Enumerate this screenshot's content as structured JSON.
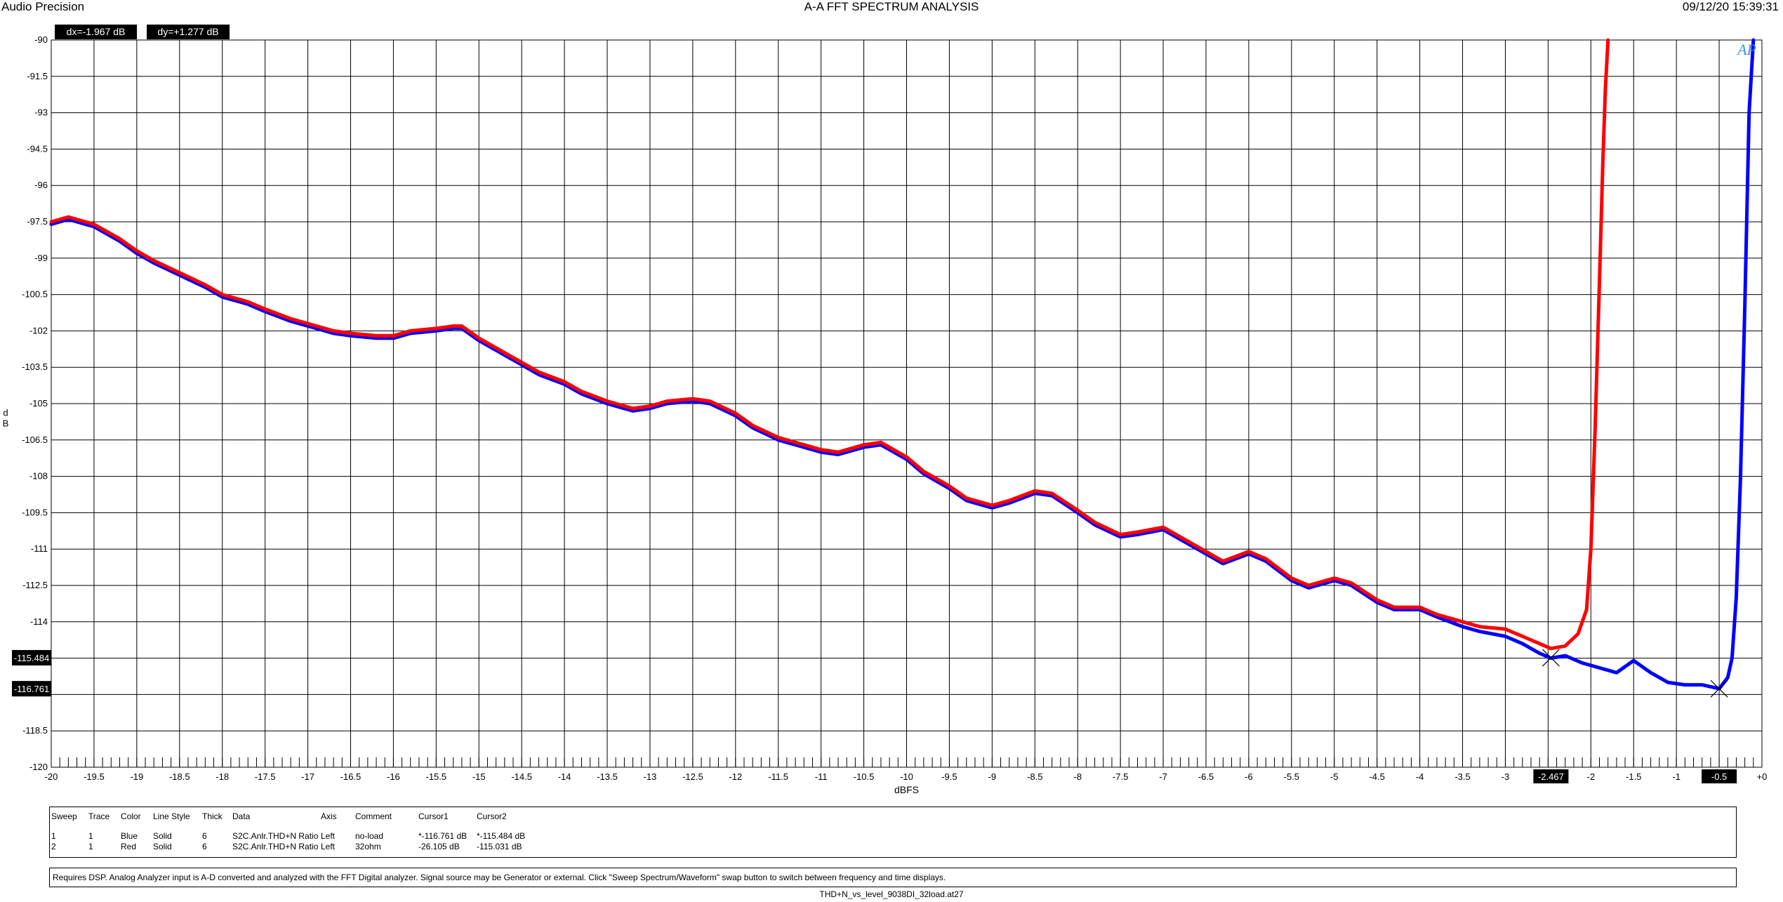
{
  "header": {
    "brand": "Audio Precision",
    "title": "A-A FFT SPECTRUM ANALYSIS",
    "datetime": "09/12/20 15:39:31"
  },
  "cursor_readouts": {
    "dx": "dx=-1.967  dB",
    "dy": "dy=+1.277  dB"
  },
  "logo": "AP",
  "colors": {
    "blue": "#0000ff",
    "red": "#ff0000",
    "grid": "#000000",
    "background": "#ffffff"
  },
  "chart_data": {
    "type": "line",
    "title": "A-A FFT SPECTRUM ANALYSIS",
    "xlabel": "dBFS",
    "ylabel": "dB",
    "xlim": [
      -20,
      0
    ],
    "ylim": [
      -120,
      -90
    ],
    "x_ticks": [
      -20,
      -19.5,
      -19,
      -18.5,
      -18,
      -17.5,
      -17,
      -16.5,
      -16,
      -15.5,
      -15,
      -14.5,
      -14,
      -13.5,
      -13,
      -12.5,
      -12,
      -11.5,
      -11,
      -10.5,
      -10,
      -9.5,
      -9,
      -8.5,
      -8,
      -7.5,
      -7,
      -6.5,
      -6,
      -5.5,
      -5,
      -4.5,
      -4,
      -3.5,
      -3,
      -2.5,
      -2,
      -1.5,
      -1,
      -0.5,
      0
    ],
    "x_tick_labels": [
      "-20",
      "-19.5",
      "-19",
      "-18.5",
      "-18",
      "-17.5",
      "-17",
      "-16.5",
      "-16",
      "-15.5",
      "-15",
      "-14.5",
      "-14",
      "-13.5",
      "-13",
      "-12.5",
      "-12",
      "-11.5",
      "-11",
      "-10.5",
      "-10",
      "-9.5",
      "-9",
      "-8.5",
      "-8",
      "-7.5",
      "-7",
      "-6.5",
      "-6",
      "-5.5",
      "-5",
      "-4.5",
      "-4",
      "-3.5",
      "-3",
      "-2.5",
      "-2",
      "-1.5",
      "-1",
      "-0.5",
      "+0"
    ],
    "y_ticks": [
      -90,
      -91.5,
      -93,
      -94.5,
      -96,
      -97.5,
      -99,
      -100.5,
      -102,
      -103.5,
      -105,
      -106.5,
      -108,
      -109.5,
      -111,
      -112.5,
      -114,
      -115.5,
      -117,
      -118.5,
      -120
    ],
    "y_tick_labels": [
      "-90",
      "-91.5",
      "-93",
      "-94.5",
      "-96",
      "-97.5",
      "-99",
      "-100.5",
      "-102",
      "-103.5",
      "-105",
      "-106.5",
      "-108",
      "-109.5",
      "-111",
      "-112.5",
      "-114",
      "",
      "",
      "-118.5",
      "-120"
    ],
    "grid": true,
    "cursor_markers": {
      "x": [
        {
          "value": -2.467,
          "label": "-2.467"
        },
        {
          "value": -0.5,
          "label": "-0.5"
        }
      ],
      "y": [
        {
          "value": -115.484,
          "label": "-115.484"
        },
        {
          "value": -116.761,
          "label": "-116.761"
        }
      ],
      "points": [
        {
          "x": -2.467,
          "y": -115.484
        },
        {
          "x": -0.5,
          "y": -116.761
        }
      ]
    },
    "series": [
      {
        "color": "#0000ff",
        "x": [
          -20,
          -19.8,
          -19.5,
          -19.2,
          -19,
          -18.8,
          -18.5,
          -18.2,
          -18,
          -17.7,
          -17.5,
          -17.2,
          -17,
          -16.7,
          -16.5,
          -16.2,
          -16,
          -15.8,
          -15.5,
          -15.3,
          -15.2,
          -15,
          -14.8,
          -14.5,
          -14.3,
          -14,
          -13.8,
          -13.5,
          -13.2,
          -13,
          -12.8,
          -12.5,
          -12.3,
          -12,
          -11.8,
          -11.5,
          -11.2,
          -11,
          -10.8,
          -10.5,
          -10.3,
          -10,
          -9.8,
          -9.5,
          -9.3,
          -9,
          -8.8,
          -8.5,
          -8.3,
          -8,
          -7.8,
          -7.5,
          -7.3,
          -7,
          -6.8,
          -6.5,
          -6.3,
          -6,
          -5.8,
          -5.5,
          -5.3,
          -5,
          -4.8,
          -4.5,
          -4.3,
          -4,
          -3.8,
          -3.5,
          -3.3,
          -3,
          -2.8,
          -2.6,
          -2.467,
          -2.3,
          -2.1,
          -1.9,
          -1.7,
          -1.5,
          -1.3,
          -1.1,
          -0.9,
          -0.7,
          -0.5,
          -0.4,
          -0.35,
          -0.3,
          -0.25,
          -0.2,
          -0.15,
          -0.1
        ],
        "y": [
          -97.6,
          -97.4,
          -97.7,
          -98.3,
          -98.8,
          -99.2,
          -99.7,
          -100.2,
          -100.6,
          -100.9,
          -101.2,
          -101.6,
          -101.8,
          -102.1,
          -102.2,
          -102.3,
          -102.3,
          -102.1,
          -102,
          -101.9,
          -101.9,
          -102.4,
          -102.8,
          -103.4,
          -103.8,
          -104.2,
          -104.6,
          -105,
          -105.3,
          -105.2,
          -105,
          -104.9,
          -105,
          -105.5,
          -106,
          -106.5,
          -106.8,
          -107,
          -107.1,
          -106.8,
          -106.7,
          -107.3,
          -107.9,
          -108.5,
          -109,
          -109.3,
          -109.1,
          -108.7,
          -108.8,
          -109.5,
          -110,
          -110.5,
          -110.4,
          -110.2,
          -110.6,
          -111.2,
          -111.6,
          -111.2,
          -111.5,
          -112.3,
          -112.6,
          -112.3,
          -112.5,
          -113.2,
          -113.5,
          -113.5,
          -113.8,
          -114.2,
          -114.4,
          -114.6,
          -114.9,
          -115.3,
          -115.5,
          -115.4,
          -115.7,
          -115.9,
          -116.1,
          -115.6,
          -116.1,
          -116.5,
          -116.6,
          -116.6,
          -116.76,
          -116.3,
          -115.5,
          -113,
          -108,
          -101,
          -93,
          -90
        ]
      },
      {
        "color": "#ff0000",
        "x": [
          -20,
          -19.8,
          -19.5,
          -19.2,
          -19,
          -18.8,
          -18.5,
          -18.2,
          -18,
          -17.7,
          -17.5,
          -17.2,
          -17,
          -16.7,
          -16.5,
          -16.2,
          -16,
          -15.8,
          -15.5,
          -15.3,
          -15.2,
          -15,
          -14.8,
          -14.5,
          -14.3,
          -14,
          -13.8,
          -13.5,
          -13.2,
          -13,
          -12.8,
          -12.5,
          -12.3,
          -12,
          -11.8,
          -11.5,
          -11.2,
          -11,
          -10.8,
          -10.5,
          -10.3,
          -10,
          -9.8,
          -9.5,
          -9.3,
          -9,
          -8.8,
          -8.5,
          -8.3,
          -8,
          -7.8,
          -7.5,
          -7.3,
          -7,
          -6.8,
          -6.5,
          -6.3,
          -6,
          -5.8,
          -5.5,
          -5.3,
          -5,
          -4.8,
          -4.5,
          -4.3,
          -4,
          -3.8,
          -3.5,
          -3.3,
          -3,
          -2.8,
          -2.6,
          -2.467,
          -2.3,
          -2.15,
          -2.05,
          -2.0,
          -1.95,
          -1.9,
          -1.86,
          -1.83,
          -1.8
        ],
        "y": [
          -97.5,
          -97.3,
          -97.6,
          -98.2,
          -98.7,
          -99.1,
          -99.6,
          -100.1,
          -100.5,
          -100.8,
          -101.1,
          -101.5,
          -101.7,
          -102,
          -102.1,
          -102.2,
          -102.2,
          -102,
          -101.9,
          -101.8,
          -101.8,
          -102.3,
          -102.7,
          -103.3,
          -103.7,
          -104.1,
          -104.5,
          -104.9,
          -105.2,
          -105.1,
          -104.9,
          -104.8,
          -104.9,
          -105.4,
          -105.9,
          -106.4,
          -106.7,
          -106.9,
          -107,
          -106.7,
          -106.6,
          -107.2,
          -107.8,
          -108.4,
          -108.9,
          -109.2,
          -109,
          -108.6,
          -108.7,
          -109.4,
          -109.9,
          -110.4,
          -110.3,
          -110.1,
          -110.5,
          -111.1,
          -111.5,
          -111.1,
          -111.4,
          -112.2,
          -112.5,
          -112.2,
          -112.4,
          -113.1,
          -113.4,
          -113.4,
          -113.7,
          -114,
          -114.2,
          -114.3,
          -114.6,
          -114.9,
          -115.1,
          -115,
          -114.5,
          -113.5,
          -111,
          -106,
          -100,
          -95,
          -92,
          -90
        ]
      }
    ]
  },
  "legend": {
    "headers": [
      "Sweep",
      "Trace",
      "Color",
      "Line Style",
      "Thick",
      "Data",
      "Axis",
      "Comment",
      "Cursor1",
      "Cursor2"
    ],
    "rows": [
      [
        "1",
        "1",
        "Blue",
        "Solid",
        "6",
        "S2C.Anlr.THD+N Ratio",
        "Left",
        "no-load",
        "*-116.761  dB",
        "*-115.484  dB"
      ],
      [
        "2",
        "1",
        "Red",
        "Solid",
        "6",
        "S2C.Anlr.THD+N Ratio",
        "Left",
        "32ohm",
        "-26.105  dB",
        "-115.031  dB"
      ]
    ]
  },
  "note": "Requires DSP.  Analog Analyzer input is A-D converted and analyzed with the FFT Digital analyzer.  Signal source may be Generator or external.  Click \"Sweep Spectrum/Waveform\" swap button to switch between frequency and time displays.",
  "filename": "THD+N_vs_level_9038DI_32load.at27"
}
